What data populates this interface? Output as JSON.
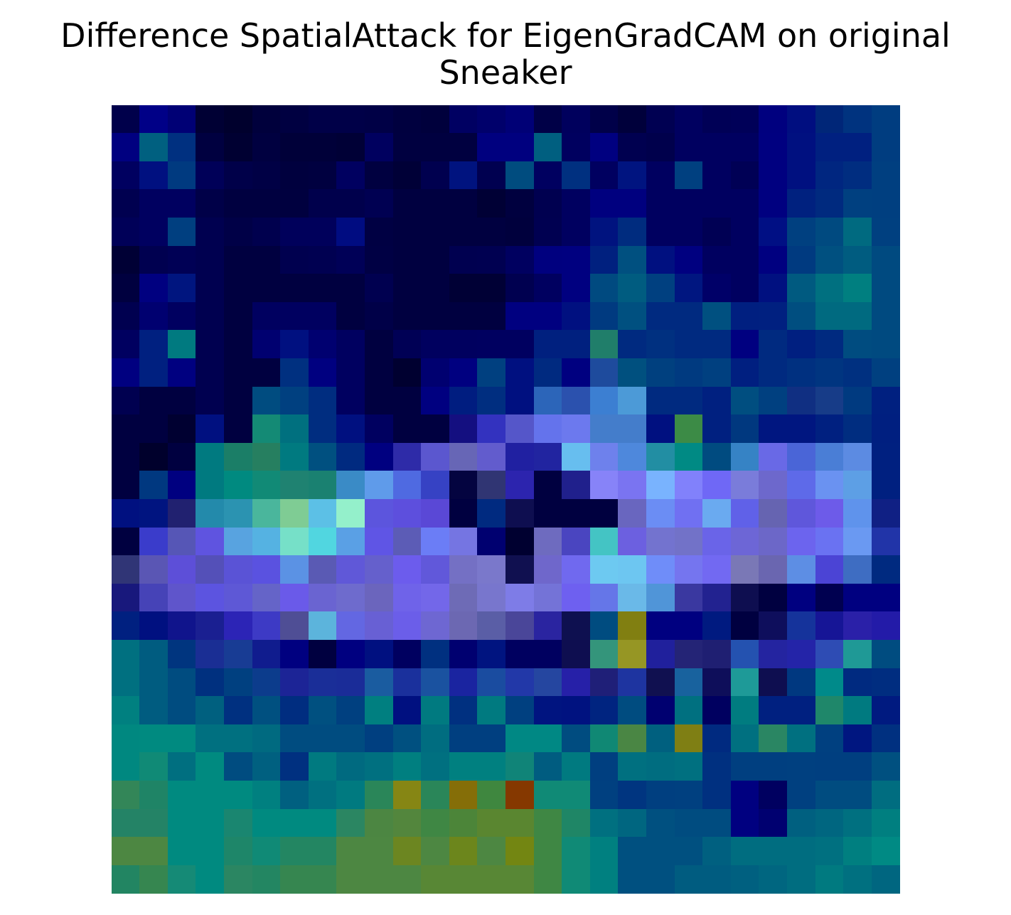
{
  "chart_data": {
    "type": "heatmap",
    "title_lines": [
      "Difference SpatialAttack for EigenGradCAM on original",
      "Sneaker"
    ],
    "xlabel": "",
    "ylabel": "",
    "axes_visible": false,
    "colorbar": false,
    "rows": 28,
    "cols": 28,
    "cells": [
      [
        "#00004b",
        "#000087",
        "#000075",
        "#000034",
        "#00002d",
        "#00003c",
        "#000041",
        "#000048",
        "#000048",
        "#000046",
        "#00003f",
        "#00003c",
        "#000062",
        "#00006b",
        "#000076",
        "#000047",
        "#00005d",
        "#000049",
        "#00003b",
        "#000052",
        "#000060",
        "#000056",
        "#000058",
        "#00007f",
        "#000e80",
        "#002678",
        "#00337f",
        "#003d80"
      ],
      [
        "#000080",
        "#006080",
        "#003080",
        "#000040",
        "#000032",
        "#000040",
        "#000039",
        "#000039",
        "#000036",
        "#00005f",
        "#000040",
        "#000040",
        "#000040",
        "#00007f",
        "#00007f",
        "#005f80",
        "#00005f",
        "#000080",
        "#000050",
        "#00004c",
        "#000060",
        "#000060",
        "#000060",
        "#000080",
        "#001080",
        "#002080",
        "#002080",
        "#003d80"
      ],
      [
        "#000060",
        "#001080",
        "#003a80",
        "#000058",
        "#000049",
        "#000045",
        "#00003e",
        "#000040",
        "#000060",
        "#000040",
        "#000037",
        "#00004f",
        "#00137f",
        "#000050",
        "#004c7f",
        "#000060",
        "#003080",
        "#000060",
        "#001480",
        "#000060",
        "#004080",
        "#000060",
        "#000055",
        "#000080",
        "#001080",
        "#002680",
        "#002d80",
        "#003f80"
      ],
      [
        "#000050",
        "#000060",
        "#000060",
        "#000048",
        "#000040",
        "#000040",
        "#00003f",
        "#00004c",
        "#00004c",
        "#000052",
        "#000040",
        "#000040",
        "#000040",
        "#000035",
        "#00003f",
        "#000050",
        "#000060",
        "#00007f",
        "#00007f",
        "#000060",
        "#000060",
        "#000060",
        "#000060",
        "#000080",
        "#00217f",
        "#002a7f",
        "#004080",
        "#003f80"
      ],
      [
        "#000058",
        "#000060",
        "#003f80",
        "#000050",
        "#000047",
        "#00004e",
        "#00005b",
        "#00005b",
        "#000c81",
        "#000043",
        "#000040",
        "#000040",
        "#000040",
        "#000040",
        "#00003d",
        "#000051",
        "#000060",
        "#00137f",
        "#002c7f",
        "#000060",
        "#000060",
        "#000054",
        "#000060",
        "#000f84",
        "#004080",
        "#004a80",
        "#006a80",
        "#004080"
      ],
      [
        "#000035",
        "#000050",
        "#000055",
        "#000050",
        "#000040",
        "#000040",
        "#00004f",
        "#000051",
        "#000057",
        "#000044",
        "#000040",
        "#000040",
        "#000050",
        "#000051",
        "#000060",
        "#00007f",
        "#000080",
        "#00207f",
        "#005080",
        "#001080",
        "#000080",
        "#000060",
        "#000060",
        "#000080",
        "#003a80",
        "#005080",
        "#005c80",
        "#004a80"
      ],
      [
        "#00003f",
        "#000080",
        "#00157f",
        "#000050",
        "#000040",
        "#000040",
        "#000040",
        "#000040",
        "#000040",
        "#000050",
        "#000040",
        "#000040",
        "#000035",
        "#000035",
        "#000050",
        "#000060",
        "#000080",
        "#004a80",
        "#005c80",
        "#004080",
        "#001680",
        "#000068",
        "#000060",
        "#001080",
        "#005a80",
        "#007080",
        "#007f80",
        "#004a80"
      ],
      [
        "#000050",
        "#000070",
        "#000060",
        "#000050",
        "#000040",
        "#000060",
        "#000060",
        "#000060",
        "#000040",
        "#000048",
        "#000040",
        "#000040",
        "#000040",
        "#000040",
        "#000080",
        "#000080",
        "#001080",
        "#003a80",
        "#005080",
        "#002a80",
        "#002a80",
        "#005080",
        "#001f80",
        "#002080",
        "#004e80",
        "#006a80",
        "#006a80",
        "#004a80"
      ],
      [
        "#000060",
        "#002080",
        "#007a80",
        "#000050",
        "#000040",
        "#000070",
        "#001080",
        "#000070",
        "#000060",
        "#000040",
        "#000055",
        "#00005f",
        "#00005f",
        "#000060",
        "#000060",
        "#00207f",
        "#00207f",
        "#207e6a",
        "#002a80",
        "#003080",
        "#002a80",
        "#002a80",
        "#000080",
        "#002a80",
        "#001f80",
        "#002a80",
        "#004c80",
        "#004a80"
      ],
      [
        "#000080",
        "#002080",
        "#000080",
        "#000050",
        "#000040",
        "#000040",
        "#003080",
        "#000080",
        "#000060",
        "#000040",
        "#000030",
        "#000070",
        "#000080",
        "#004080",
        "#001080",
        "#002a80",
        "#000080",
        "#1e4b9d",
        "#00507f",
        "#00407f",
        "#003a80",
        "#004080",
        "#001f80",
        "#002a80",
        "#003080",
        "#003580",
        "#003080",
        "#004080"
      ],
      [
        "#000050",
        "#000040",
        "#000040",
        "#000050",
        "#000040",
        "#004c80",
        "#004080",
        "#002d80",
        "#000060",
        "#000040",
        "#000040",
        "#000080",
        "#001d80",
        "#002e80",
        "#001080",
        "#2c65b9",
        "#2b51ae",
        "#3c7fd2",
        "#4c9ad7",
        "#002a80",
        "#002a80",
        "#002080",
        "#004e80",
        "#004080",
        "#102f82",
        "#173c88",
        "#003a80",
        "#002080"
      ],
      [
        "#000040",
        "#000040",
        "#000031",
        "#001080",
        "#000040",
        "#148a75",
        "#00707f",
        "#002d80",
        "#001080",
        "#000060",
        "#000040",
        "#000040",
        "#140f80",
        "#3332bf",
        "#5556c9",
        "#6473ec",
        "#6c79ee",
        "#447dcb",
        "#447dcb",
        "#001080",
        "#3c8b46",
        "#002080",
        "#00387f",
        "#001680",
        "#001680",
        "#002080",
        "#002d80",
        "#001f80"
      ],
      [
        "#000040",
        "#00002c",
        "#000040",
        "#007a80",
        "#1b7e67",
        "#267f60",
        "#007a80",
        "#005080",
        "#002a80",
        "#000080",
        "#2e2ba8",
        "#5b57cf",
        "#6766b6",
        "#625ccd",
        "#2020a1",
        "#2124a0",
        "#67beef",
        "#6e81ec",
        "#4e88dc",
        "#228ea3",
        "#008a84",
        "#004b80",
        "#3683c5",
        "#6969e6",
        "#4a65d7",
        "#4a7ed6",
        "#5c8be2",
        "#002080"
      ],
      [
        "#000040",
        "#003880",
        "#000080",
        "#007a80",
        "#008a80",
        "#118a76",
        "#1f8271",
        "#1a8171",
        "#3a8bc6",
        "#5f9bea",
        "#4f6ae1",
        "#3642c4",
        "#040440",
        "#303573",
        "#2c24ae",
        "#000040",
        "#20208c",
        "#8783f8",
        "#7a74f1",
        "#79b3fe",
        "#8181fb",
        "#6f68f6",
        "#7a7cda",
        "#6d68cc",
        "#5e6ae9",
        "#6a92f1",
        "#5d9fe5",
        "#002080"
      ],
      [
        "#001080",
        "#001480",
        "#212170",
        "#238aab",
        "#2b93b1",
        "#4ab69c",
        "#7fcc94",
        "#5cc0e6",
        "#94f0cb",
        "#5c55dd",
        "#5d4fdd",
        "#5a48d6",
        "#000040",
        "#002a80",
        "#0e0e50",
        "#000040",
        "#000040",
        "#00003f",
        "#6966bf",
        "#6b8df4",
        "#7070f2",
        "#6aaaf0",
        "#6061e8",
        "#6664b1",
        "#5f57db",
        "#6d5be9",
        "#5f93ec",
        "#102084"
      ],
      [
        "#000040",
        "#3a3ccb",
        "#5656b6",
        "#5f54e0",
        "#58a3e0",
        "#55b2e2",
        "#76e0c8",
        "#51d6e0",
        "#5aa0e5",
        "#5f55e5",
        "#5c5cb6",
        "#6b7df6",
        "#7575e2",
        "#000070",
        "#000030",
        "#6e6bbf",
        "#4a45c0",
        "#44c4c4",
        "#6c60e0",
        "#7373cf",
        "#7272c8",
        "#6a64e8",
        "#6d66d6",
        "#6c67c8",
        "#6c64ee",
        "#6a72f2",
        "#6a99f2",
        "#2134a8"
      ],
      [
        "#303576",
        "#5a56b4",
        "#5d4fd8",
        "#5450b8",
        "#5a53d6",
        "#5a52e0",
        "#5b92e4",
        "#5a5ab4",
        "#6058d8",
        "#6560cc",
        "#6c5ced",
        "#6158da",
        "#7470c4",
        "#7a78cb",
        "#101050",
        "#6f67cb",
        "#7069ef",
        "#6dc9f1",
        "#6dc6f1",
        "#6f8df9",
        "#7575ef",
        "#7269f2",
        "#7a78b6",
        "#6a66b0",
        "#5d8ee4",
        "#4b44d5",
        "#3e6dc2",
        "#002a80"
      ],
      [
        "#18187c",
        "#4643b7",
        "#5f55cb",
        "#5c54e0",
        "#5e58d6",
        "#6564c8",
        "#6a5ae9",
        "#6a64d1",
        "#6e6bcd",
        "#6b65bd",
        "#6f63e9",
        "#7367e9",
        "#6e6bb6",
        "#7876cd",
        "#7e7ce7",
        "#7473d7",
        "#6e60f0",
        "#6576e8",
        "#6ab9e8",
        "#5095d8",
        "#3a38a0",
        "#222290",
        "#0e0e50",
        "#000040",
        "#000080",
        "#000050",
        "#000080",
        "#000080"
      ],
      [
        "#002080",
        "#001080",
        "#10148c",
        "#1a1f91",
        "#2c24b6",
        "#3d3ac5",
        "#4f4e95",
        "#5cb4dc",
        "#6367e2",
        "#6860d4",
        "#6b5ee9",
        "#6e67d2",
        "#6c68b2",
        "#5a5ea6",
        "#4a4699",
        "#2a24a0",
        "#0e1050",
        "#004c80",
        "#817f11",
        "#000080",
        "#000080",
        "#001a80",
        "#000040",
        "#0e0e5c",
        "#15339b",
        "#161596",
        "#2a20a8",
        "#231ba8"
      ],
      [
        "#007080",
        "#005c80",
        "#00357f",
        "#1a2e94",
        "#183c94",
        "#101c8e",
        "#000080",
        "#000040",
        "#000080",
        "#001080",
        "#000060",
        "#003080",
        "#000070",
        "#001480",
        "#000060",
        "#000060",
        "#0e0e50",
        "#34957b",
        "#969624",
        "#20209c",
        "#242476",
        "#1f1f72",
        "#2452b0",
        "#2424a0",
        "#2424a8",
        "#2e4cb4",
        "#1f9996",
        "#004c80"
      ],
      [
        "#007080",
        "#005c80",
        "#004c80",
        "#00307f",
        "#004080",
        "#0c3c8c",
        "#1c2496",
        "#1a2e98",
        "#1a2c98",
        "#1a5ca0",
        "#1a309c",
        "#1a52a0",
        "#1a24a0",
        "#1a4ca0",
        "#2238a8",
        "#2546a0",
        "#2620a8",
        "#1f1f78",
        "#1e34a0",
        "#101050",
        "#18629e",
        "#0e0e5a",
        "#1e9a98",
        "#0e0e50",
        "#003880",
        "#008a8a",
        "#002a80",
        "#002d80"
      ],
      [
        "#008080",
        "#005c80",
        "#004c80",
        "#00607f",
        "#003080",
        "#005080",
        "#002d80",
        "#005080",
        "#004080",
        "#007f80",
        "#001080",
        "#007a80",
        "#003080",
        "#007a80",
        "#004080",
        "#001480",
        "#001280",
        "#002480",
        "#004c80",
        "#000070",
        "#007080",
        "#000060",
        "#007c80",
        "#002080",
        "#002080",
        "#1f876a",
        "#007a80",
        "#001a80"
      ],
      [
        "#008880",
        "#008a80",
        "#008a80",
        "#007080",
        "#007080",
        "#006a80",
        "#004c80",
        "#004c80",
        "#004c80",
        "#003f80",
        "#005080",
        "#006d80",
        "#003f80",
        "#003f80",
        "#008884",
        "#008884",
        "#004c80",
        "#108874",
        "#4a8644",
        "#00607f",
        "#7f7f14",
        "#002a80",
        "#007080",
        "#2a8663",
        "#007080",
        "#004080",
        "#001680",
        "#003080"
      ],
      [
        "#008880",
        "#108a76",
        "#006f80",
        "#008a80",
        "#004c80",
        "#006080",
        "#003080",
        "#007a80",
        "#006a80",
        "#007080",
        "#007f80",
        "#007080",
        "#008080",
        "#008080",
        "#108478",
        "#005c80",
        "#007a80",
        "#003f80",
        "#007080",
        "#006d80",
        "#007080",
        "#003080",
        "#003f80",
        "#003f80",
        "#004080",
        "#003f80",
        "#003f80",
        "#005080"
      ],
      [
        "#338658",
        "#1f8466",
        "#008a80",
        "#008a80",
        "#008a80",
        "#008080",
        "#006080",
        "#007080",
        "#007a80",
        "#2a8659",
        "#868614",
        "#2a8659",
        "#856e08",
        "#3f873f",
        "#853800",
        "#108a76",
        "#108a76",
        "#004080",
        "#003580",
        "#003f80",
        "#004080",
        "#003080",
        "#000080",
        "#000060",
        "#004080",
        "#004c80",
        "#004c80",
        "#006d80"
      ],
      [
        "#248366",
        "#248366",
        "#008a80",
        "#008a80",
        "#1a8670",
        "#008a80",
        "#008a80",
        "#008a80",
        "#2b8662",
        "#4c8642",
        "#53863d",
        "#3f8744",
        "#4c8539",
        "#5a8630",
        "#5a8630",
        "#3f8744",
        "#1f8666",
        "#007080",
        "#006680",
        "#005080",
        "#004c80",
        "#004c80",
        "#000080",
        "#000070",
        "#006080",
        "#006680",
        "#007080",
        "#007f80"
      ],
      [
        "#4d8742",
        "#4d8742",
        "#008a80",
        "#008a80",
        "#1e8669",
        "#108a76",
        "#238662",
        "#238662",
        "#4d8742",
        "#4d8742",
        "#6c8621",
        "#4d8742",
        "#6c861c",
        "#4d8742",
        "#738612",
        "#3f8744",
        "#108a76",
        "#008080",
        "#005080",
        "#005080",
        "#005080",
        "#006080",
        "#006d80",
        "#006d80",
        "#006d80",
        "#007080",
        "#007f80",
        "#008a84"
      ],
      [
        "#228562",
        "#368650",
        "#158a76",
        "#008a80",
        "#2b8662",
        "#238662",
        "#368650",
        "#368650",
        "#4d8742",
        "#4d8742",
        "#4d8742",
        "#588735",
        "#588735",
        "#588735",
        "#588735",
        "#3f8744",
        "#108a76",
        "#008080",
        "#005080",
        "#005080",
        "#005c80",
        "#005c80",
        "#006080",
        "#006680",
        "#006d80",
        "#007a80",
        "#007080",
        "#006680"
      ]
    ]
  }
}
